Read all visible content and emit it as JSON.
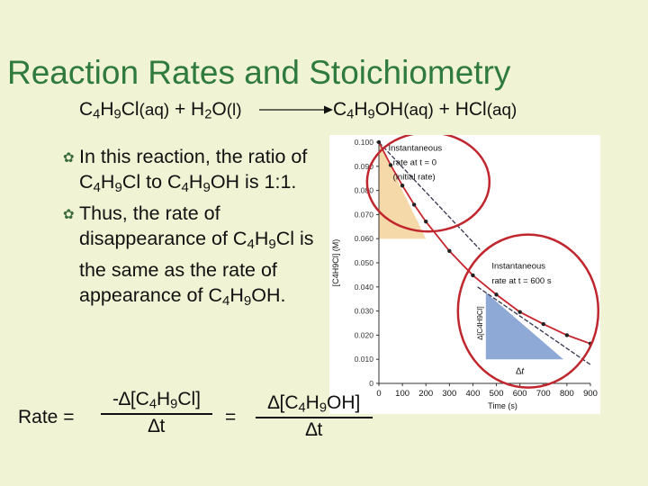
{
  "title": "Reaction Rates and Stoichiometry",
  "equation": {
    "left": {
      "formula1": "C",
      "sub1": "4",
      "formula2": "H",
      "sub2": "9",
      "formula3": "Cl",
      "state1": "(aq)",
      "plus": " + H",
      "sub3": "2",
      "formula4": "O",
      "state2": "(l)"
    },
    "right": {
      "formula1": "C",
      "sub1": "4",
      "formula2": "H",
      "sub2": "9",
      "formula3": "OH",
      "state1": "(aq)",
      "plus": " + HCl",
      "state2": "(aq)"
    }
  },
  "bullets": [
    {
      "t1": "In this reaction, the ratio of C",
      "s1": "4",
      "t2": "H",
      "s2": "9",
      "t3": "Cl to C",
      "s3": "4",
      "t4": "H",
      "s4": "9",
      "t5": "OH is 1:1."
    },
    {
      "t1": "Thus, the rate of disappearance of C",
      "s1": "4",
      "t2": "H",
      "s2": "9",
      "t3": "Cl is the same as the rate of appearance of C",
      "s3": "4",
      "t4": "H",
      "s4": "9",
      "t5": "OH."
    }
  ],
  "rate_eq": {
    "label": "Rate =",
    "num1": {
      "a": "-∆[C",
      "s1": "4",
      "b": "H",
      "s2": "9",
      "c": "Cl]"
    },
    "den1": "∆t",
    "equals": "=",
    "num2": {
      "a": "∆[C",
      "s1": "4",
      "b": "H",
      "s2": "9",
      "c": "OH]"
    },
    "den2": "∆t"
  },
  "chart_data": {
    "type": "line",
    "xlabel": "Time (s)",
    "ylabel": "[C4H9Cl] (M)",
    "xlim": [
      0,
      900
    ],
    "ylim": [
      0,
      0.1
    ],
    "x_ticks": [
      "0",
      "100",
      "200",
      "300",
      "400",
      "500",
      "600",
      "700",
      "800",
      "900"
    ],
    "y_ticks": [
      "0",
      "0.010",
      "0.020",
      "0.030",
      "0.040",
      "0.050",
      "0.060",
      "0.070",
      "0.080",
      "0.090",
      "0.100"
    ],
    "points": [
      [
        0,
        0.1
      ],
      [
        50,
        0.0905
      ],
      [
        100,
        0.082
      ],
      [
        150,
        0.0741
      ],
      [
        200,
        0.0671
      ],
      [
        300,
        0.0549
      ],
      [
        400,
        0.0448
      ],
      [
        500,
        0.0368
      ],
      [
        600,
        0.0296
      ],
      [
        700,
        0.0246
      ],
      [
        800,
        0.02
      ],
      [
        900,
        0.0165
      ]
    ],
    "annotations": {
      "initial": {
        "line1": "Instantaneous",
        "line2": "rate at t = 0",
        "line3": "(initial rate)",
        "tangent_x": [
          0,
          430
        ],
        "tangent_y": [
          0.1,
          0.0555
        ]
      },
      "later": {
        "line1": "Instantaneous",
        "line2": "rate at t = 600 s",
        "tangent_x": [
          420,
          900
        ],
        "tangent_y": [
          0.04,
          0.0078
        ]
      },
      "delta_y": "∆[C4H9Cl]",
      "delta_t": "∆t"
    },
    "colors": {
      "curve": "#c7262e",
      "tangent": "#33334d",
      "triangle1": "#f6d9a8",
      "triangle2": "#8ea9d6",
      "circle": "#c0262d"
    }
  }
}
